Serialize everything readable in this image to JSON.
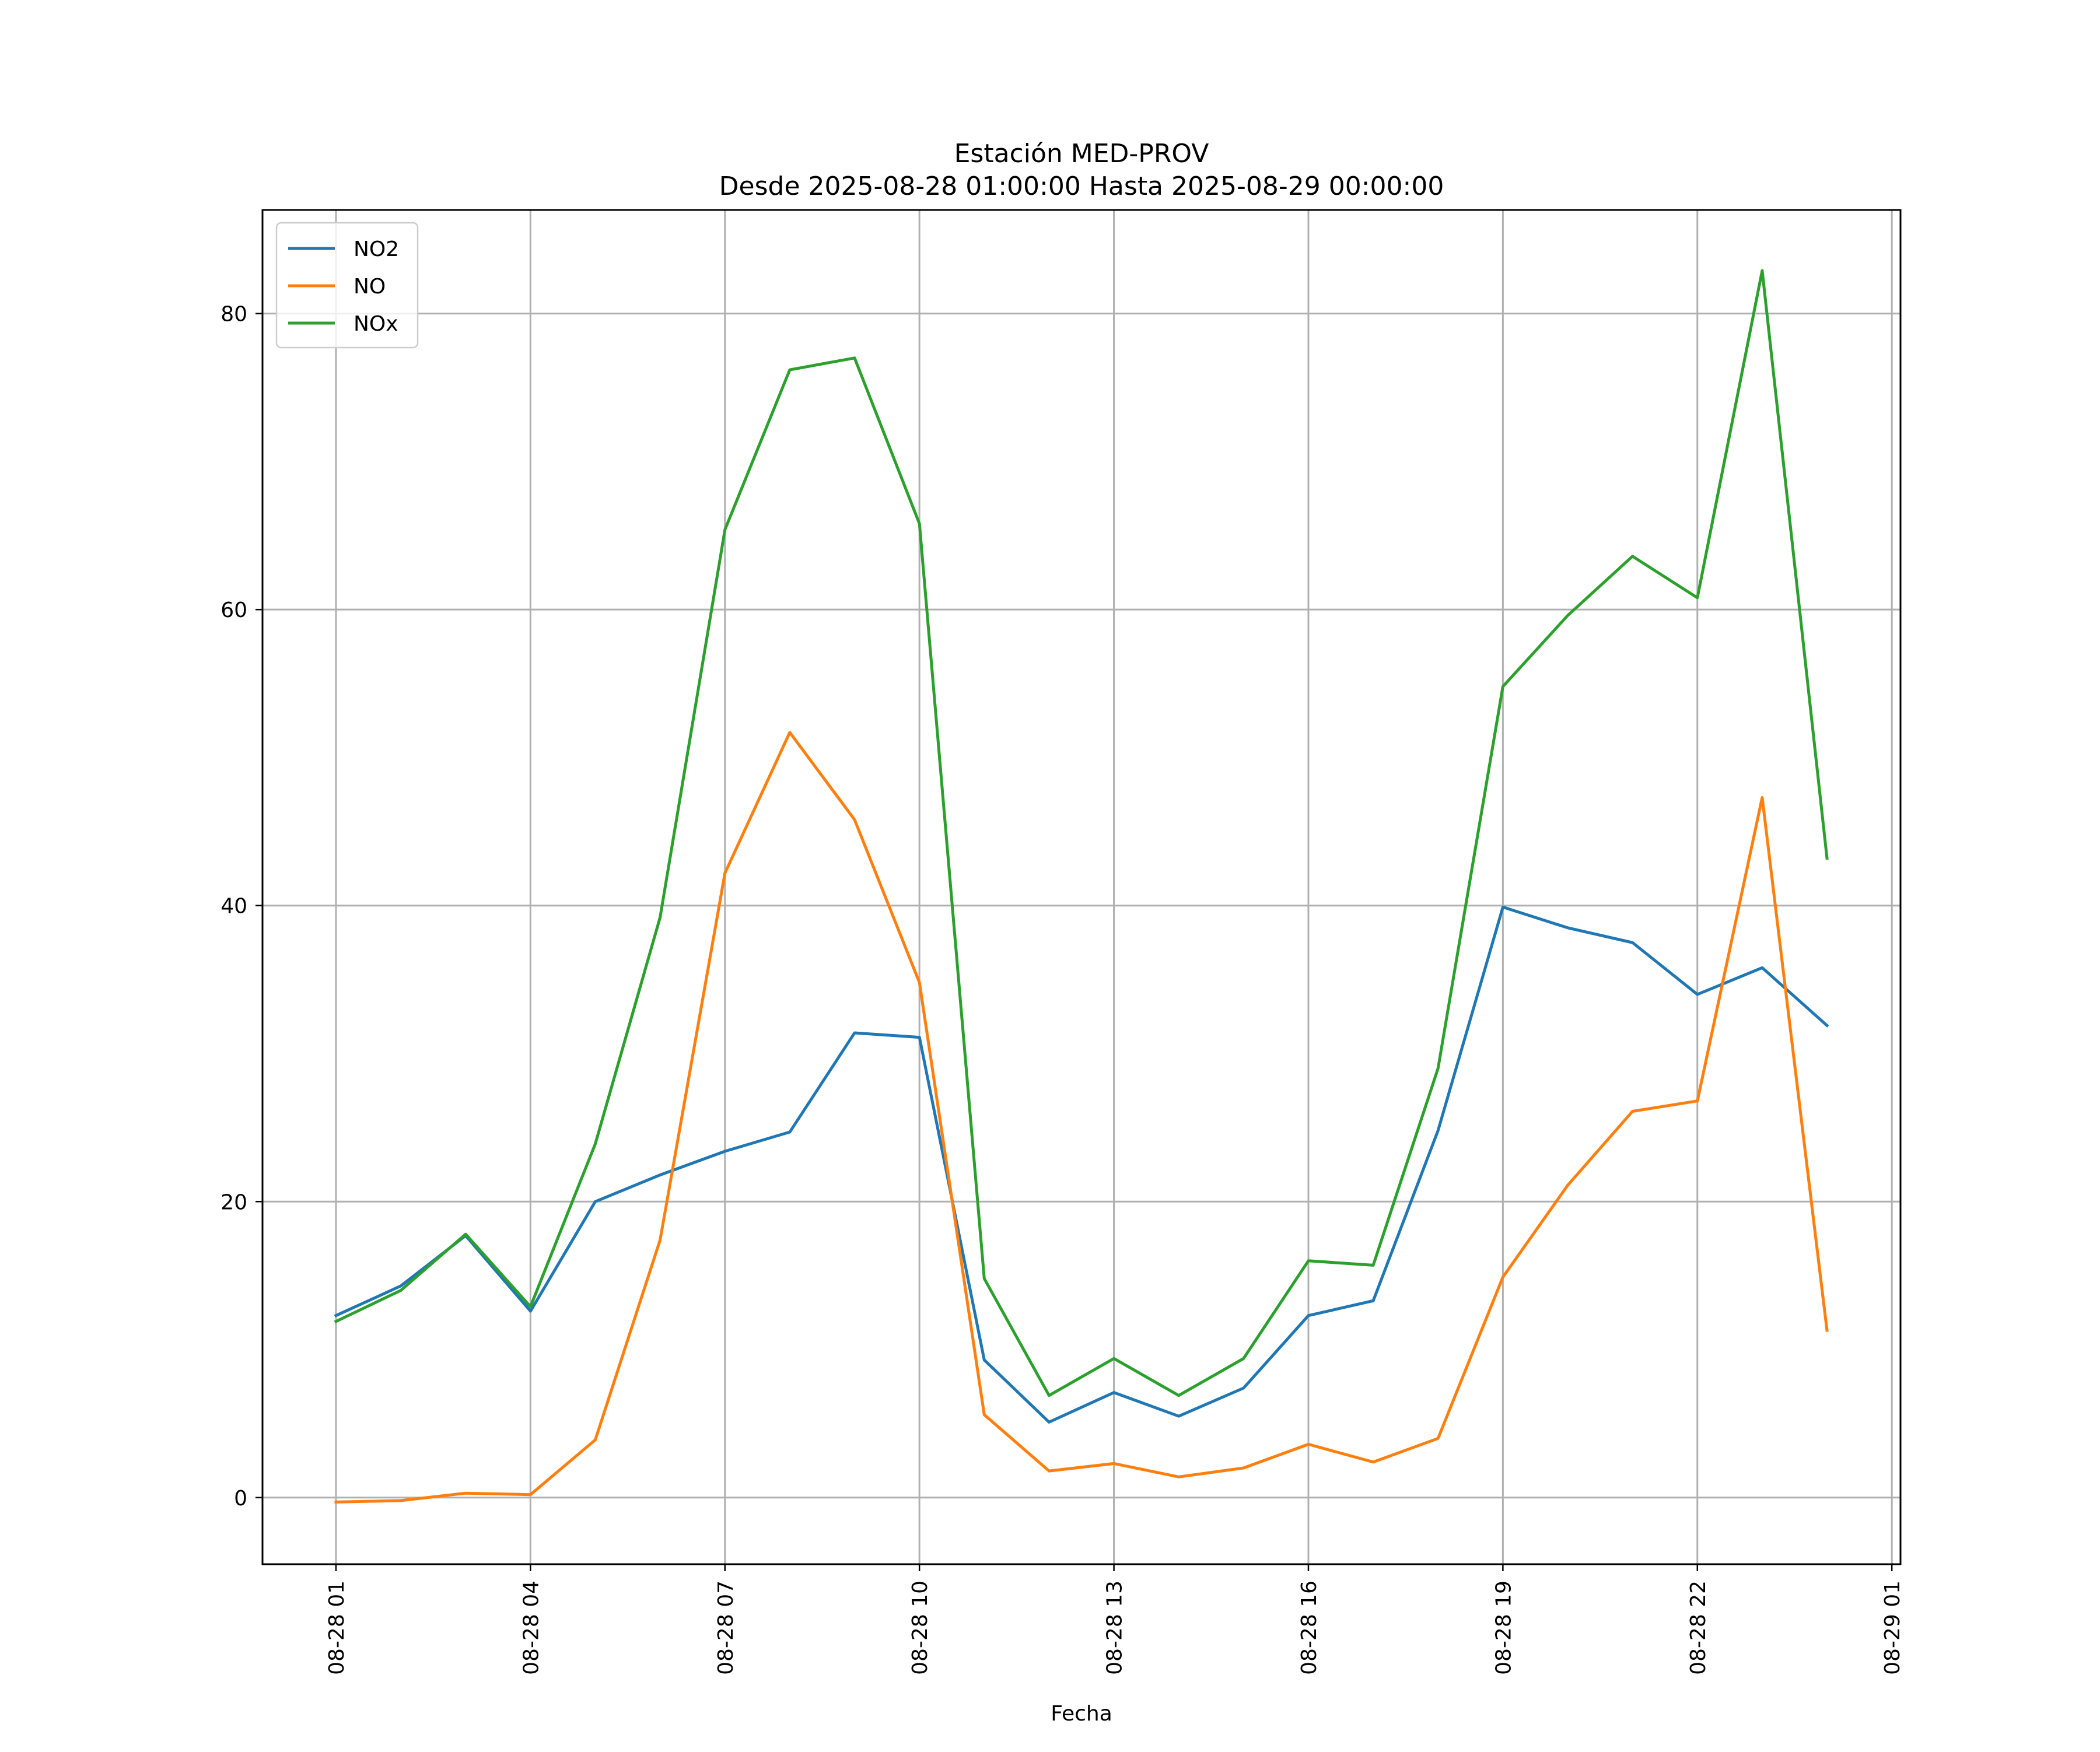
{
  "chart_data": {
    "type": "line",
    "title": "Estación MED-PROV",
    "subtitle": "Desde 2025-08-28 01:00:00 Hasta 2025-08-29 00:00:00",
    "xlabel": "Fecha",
    "ylabel": "",
    "x": [
      "2025-08-28 01:00",
      "2025-08-28 02:00",
      "2025-08-28 03:00",
      "2025-08-28 04:00",
      "2025-08-28 05:00",
      "2025-08-28 06:00",
      "2025-08-28 07:00",
      "2025-08-28 08:00",
      "2025-08-28 09:00",
      "2025-08-28 10:00",
      "2025-08-28 11:00",
      "2025-08-28 12:00",
      "2025-08-28 13:00",
      "2025-08-28 14:00",
      "2025-08-28 15:00",
      "2025-08-28 16:00",
      "2025-08-28 17:00",
      "2025-08-28 18:00",
      "2025-08-28 19:00",
      "2025-08-28 20:00",
      "2025-08-28 21:00",
      "2025-08-28 22:00",
      "2025-08-28 23:00",
      "2025-08-29 00:00"
    ],
    "xticks": [
      {
        "value": "2025-08-28 01:00",
        "label": "08-28 01"
      },
      {
        "value": "2025-08-28 04:00",
        "label": "08-28 04"
      },
      {
        "value": "2025-08-28 07:00",
        "label": "08-28 07"
      },
      {
        "value": "2025-08-28 10:00",
        "label": "08-28 10"
      },
      {
        "value": "2025-08-28 13:00",
        "label": "08-28 13"
      },
      {
        "value": "2025-08-28 16:00",
        "label": "08-28 16"
      },
      {
        "value": "2025-08-28 19:00",
        "label": "08-28 19"
      },
      {
        "value": "2025-08-28 22:00",
        "label": "08-28 22"
      },
      {
        "value": "2025-08-29 01:00",
        "label": "08-29 01"
      }
    ],
    "xlim": [
      "2025-08-27 23:52",
      "2025-08-29 01:08"
    ],
    "yticks": [
      0,
      20,
      40,
      60,
      80
    ],
    "ylim": [
      -4.5,
      87
    ],
    "grid": true,
    "legend_position": "top-left",
    "series": [
      {
        "name": "NO2",
        "color": "#1f77b4",
        "values": [
          12.3,
          14.3,
          17.7,
          12.6,
          20.0,
          21.8,
          23.4,
          24.7,
          31.4,
          31.1,
          9.3,
          5.1,
          7.1,
          5.5,
          7.4,
          12.3,
          13.3,
          24.8,
          39.9,
          38.5,
          37.5,
          34.0,
          35.8,
          31.9
        ]
      },
      {
        "name": "NO",
        "color": "#ff7f0e",
        "values": [
          -0.3,
          -0.2,
          0.3,
          0.2,
          3.9,
          17.4,
          42.2,
          51.7,
          45.8,
          34.8,
          5.6,
          1.8,
          2.3,
          1.4,
          2.0,
          3.6,
          2.4,
          4.0,
          14.9,
          21.1,
          26.1,
          26.8,
          47.3,
          11.3
        ]
      },
      {
        "name": "NOx",
        "color": "#2ca02c",
        "values": [
          11.9,
          14.0,
          17.8,
          12.9,
          23.9,
          39.2,
          65.4,
          76.2,
          77.0,
          65.8,
          14.8,
          6.9,
          9.4,
          6.9,
          9.4,
          16.0,
          15.7,
          29.0,
          54.8,
          59.6,
          63.6,
          60.8,
          82.9,
          43.2
        ]
      }
    ]
  }
}
